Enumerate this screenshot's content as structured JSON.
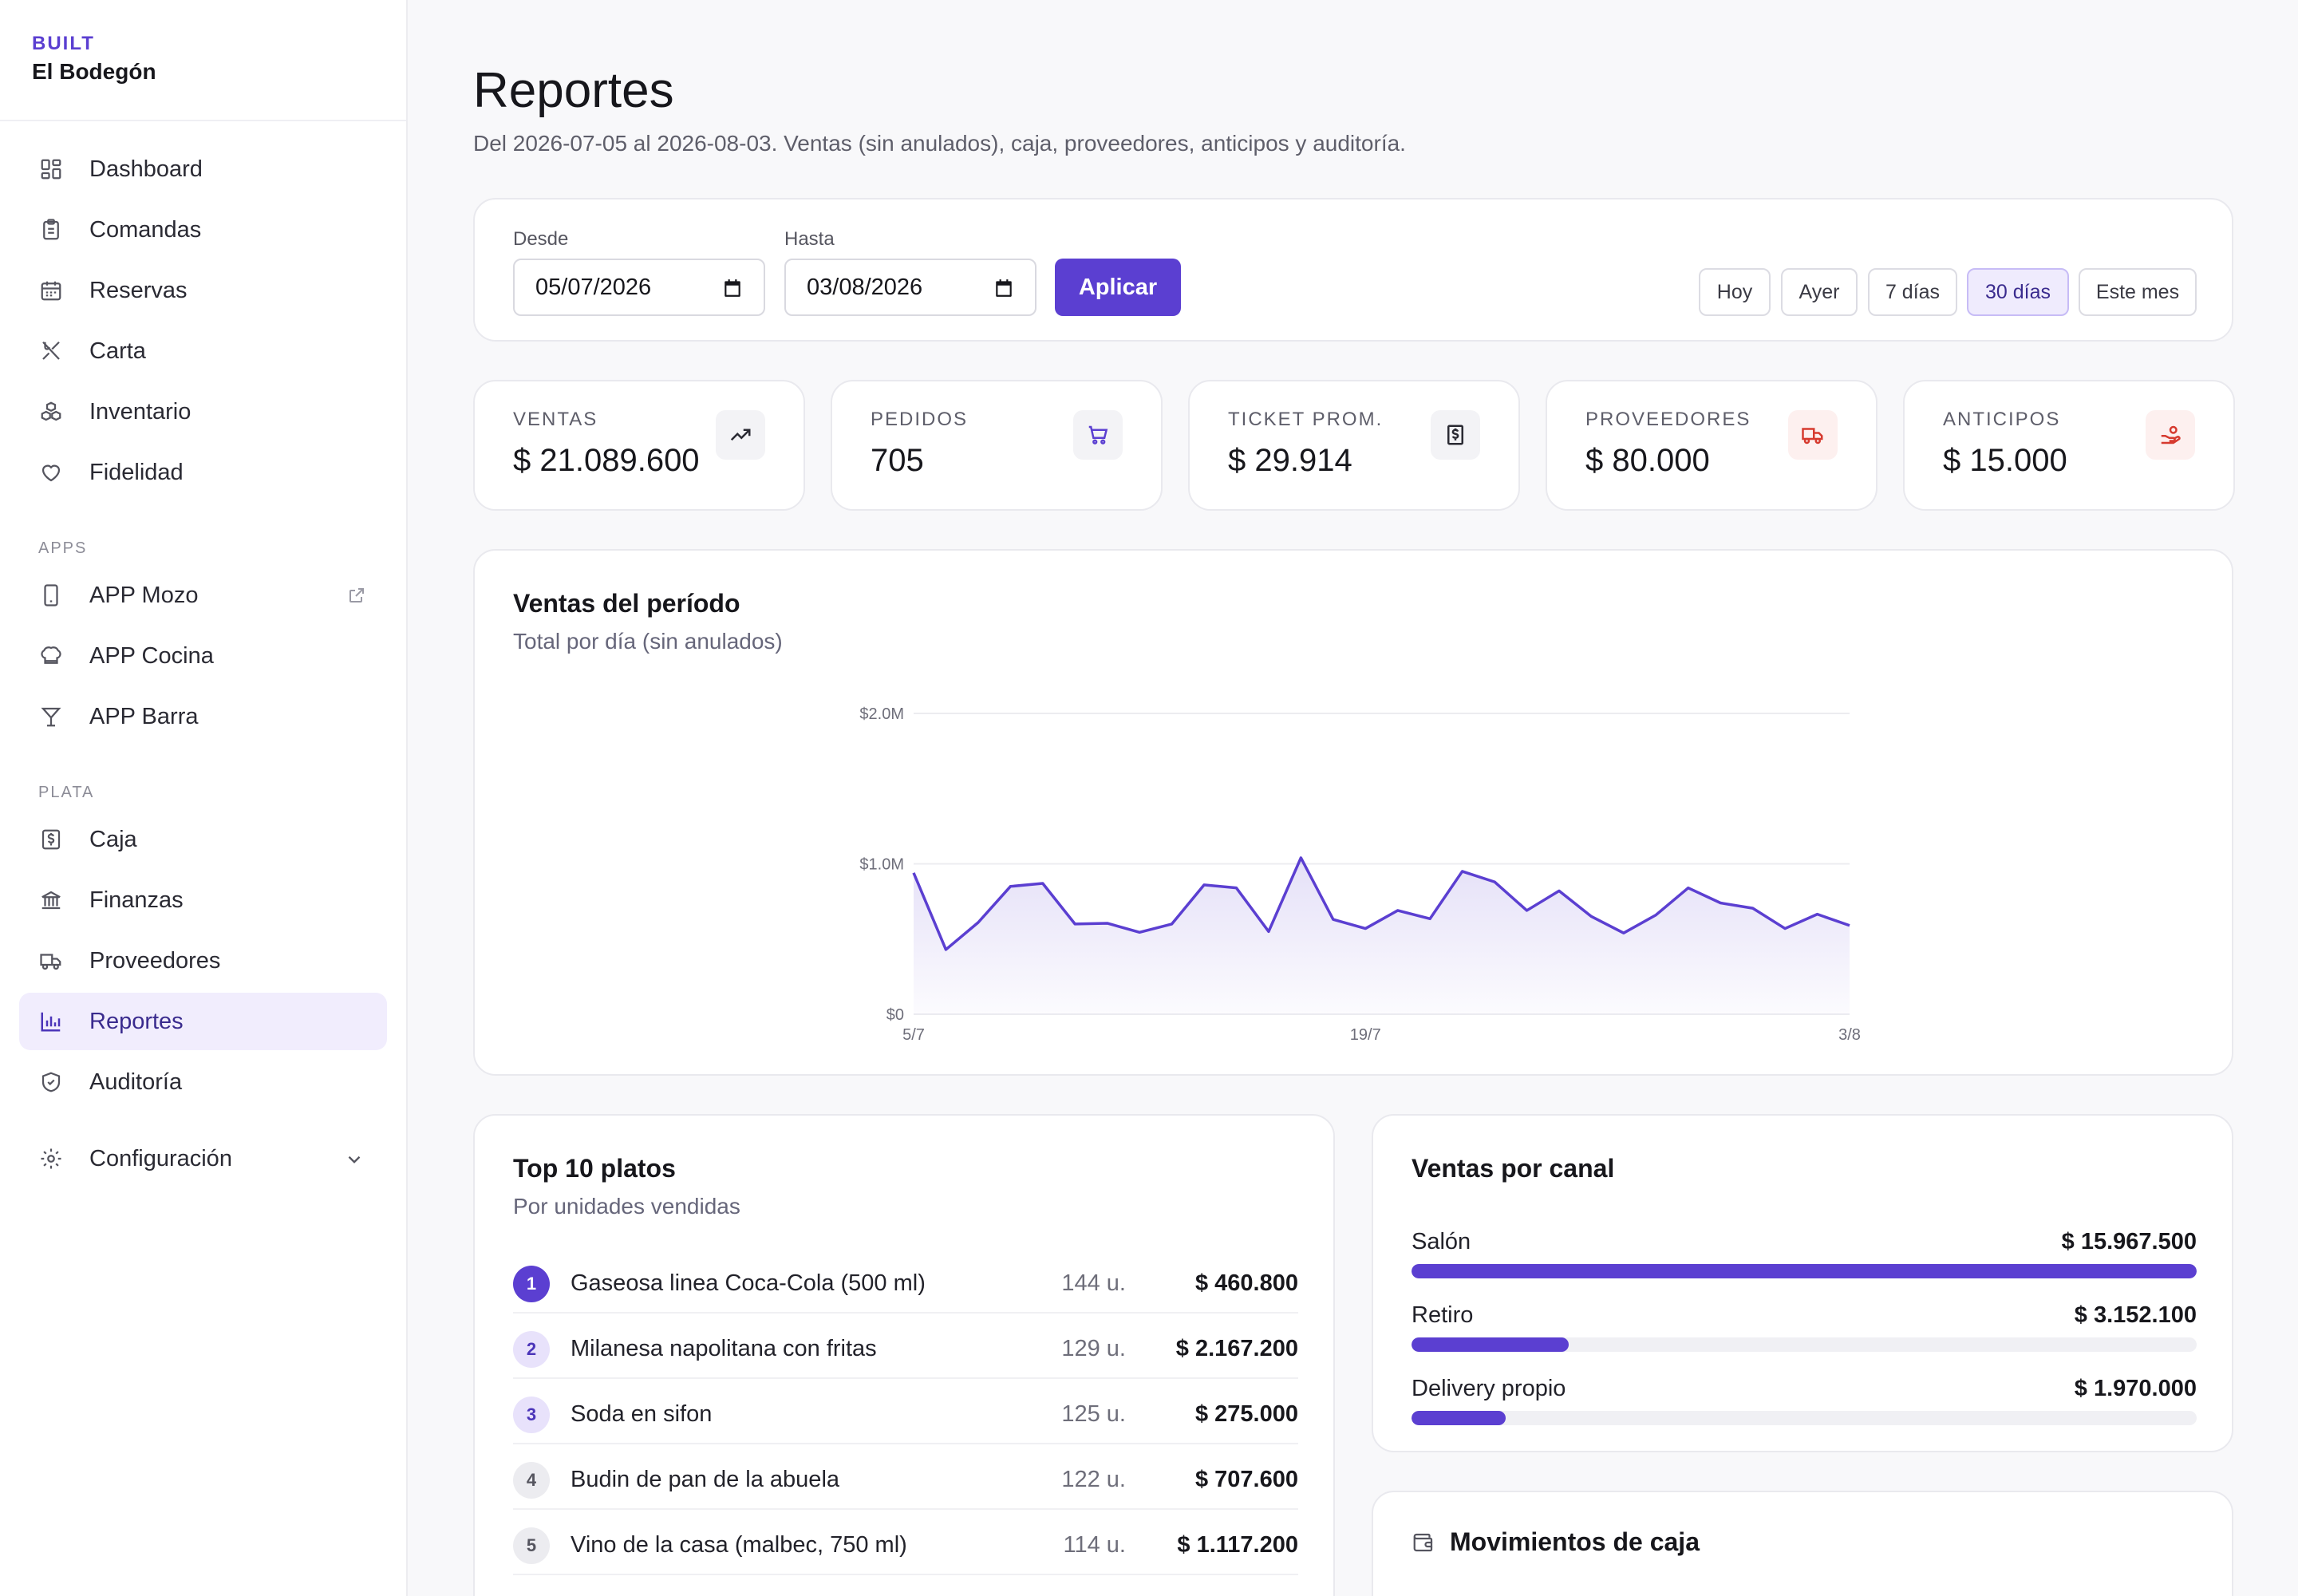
{
  "brand": {
    "sub": "BUILT",
    "name": "El Bodegón"
  },
  "nav": {
    "main": [
      {
        "label": "Dashboard",
        "icon": "dashboard-icon"
      },
      {
        "label": "Comandas",
        "icon": "clipboard-icon"
      },
      {
        "label": "Reservas",
        "icon": "calendar-icon"
      },
      {
        "label": "Carta",
        "icon": "utensils-icon"
      },
      {
        "label": "Inventario",
        "icon": "boxes-icon"
      },
      {
        "label": "Fidelidad",
        "icon": "heart-icon"
      }
    ],
    "apps_label": "APPS",
    "apps": [
      {
        "label": "APP Mozo",
        "icon": "phone-icon"
      },
      {
        "label": "APP Cocina",
        "icon": "chef-hat-icon"
      },
      {
        "label": "APP Barra",
        "icon": "cocktail-icon"
      }
    ],
    "plata_label": "PLATA",
    "plata": [
      {
        "label": "Caja",
        "icon": "cash-icon"
      },
      {
        "label": "Finanzas",
        "icon": "bank-icon"
      },
      {
        "label": "Proveedores",
        "icon": "truck-icon"
      },
      {
        "label": "Reportes",
        "icon": "bar-chart-icon"
      },
      {
        "label": "Auditoría",
        "icon": "shield-icon"
      }
    ],
    "config": {
      "label": "Configuración",
      "icon": "gear-icon"
    }
  },
  "page": {
    "title": "Reportes",
    "subtitle": "Del 2026-07-05 al 2026-08-03. Ventas (sin anulados), caja, proveedores, anticipos y auditoría."
  },
  "filter": {
    "desde_label": "Desde",
    "desde_value": "05/07/2026",
    "hasta_label": "Hasta",
    "hasta_value": "03/08/2026",
    "apply": "Aplicar",
    "chips": [
      "Hoy",
      "Ayer",
      "7 días",
      "30 días",
      "Este mes"
    ],
    "active_chip": "30 días"
  },
  "stats": [
    {
      "label": "VENTAS",
      "value": "$ 21.089.600",
      "icon": "trending-up-icon",
      "color": "#2a2a33"
    },
    {
      "label": "PEDIDOS",
      "value": "705",
      "icon": "cart-icon",
      "color": "#5b3fd1"
    },
    {
      "label": "TICKET PROM.",
      "value": "$ 29.914",
      "icon": "receipt-icon",
      "color": "#2a2a33"
    },
    {
      "label": "PROVEEDORES",
      "value": "$ 80.000",
      "icon": "truck-icon",
      "color": "#d63a2f"
    },
    {
      "label": "ANTICIPOS",
      "value": "$ 15.000",
      "icon": "hand-coins-icon",
      "color": "#d63a2f"
    }
  ],
  "chart": {
    "title": "Ventas del período",
    "subtitle": "Total por día (sin anulados)"
  },
  "chart_data": {
    "type": "area",
    "title": "Ventas del período",
    "subtitle": "Total por día (sin anulados)",
    "ylim": [
      0,
      2000000
    ],
    "y_ticks": [
      "$0",
      "$1.0M",
      "$2.0M"
    ],
    "x_ticks": [
      "5/7",
      "19/7",
      "3/8"
    ],
    "x": [
      "5/7",
      "6/7",
      "7/7",
      "8/7",
      "9/7",
      "10/7",
      "11/7",
      "12/7",
      "13/7",
      "14/7",
      "15/7",
      "16/7",
      "17/7",
      "18/7",
      "19/7",
      "20/7",
      "21/7",
      "22/7",
      "23/7",
      "24/7",
      "25/7",
      "26/7",
      "27/7",
      "28/7",
      "29/7",
      "30/7",
      "31/7",
      "1/8",
      "2/8",
      "3/8"
    ],
    "series": [
      {
        "values": [
          940000,
          430000,
          610000,
          850000,
          870000,
          600000,
          605000,
          545000,
          600000,
          860000,
          840000,
          550000,
          1040000,
          630000,
          570000,
          690000,
          635000,
          950000,
          880000,
          690000,
          820000,
          650000,
          540000,
          660000,
          840000,
          740000,
          705000,
          570000,
          665000,
          590000
        ],
        "color": "#5b3fd1"
      }
    ],
    "grid": true
  },
  "top_dishes": {
    "title": "Top 10 platos",
    "subtitle": "Por unidades vendidas",
    "items": [
      {
        "rank": "1",
        "name": "Gaseosa linea Coca-Cola (500 ml)",
        "units": "144 u.",
        "amount": "$ 460.800"
      },
      {
        "rank": "2",
        "name": "Milanesa napolitana con fritas",
        "units": "129 u.",
        "amount": "$ 2.167.200"
      },
      {
        "rank": "3",
        "name": "Soda en sifon",
        "units": "125 u.",
        "amount": "$ 275.000"
      },
      {
        "rank": "4",
        "name": "Budin de pan de la abuela",
        "units": "122 u.",
        "amount": "$ 707.600"
      },
      {
        "rank": "5",
        "name": "Vino de la casa (malbec, 750 ml)",
        "units": "114 u.",
        "amount": "$ 1.117.200"
      }
    ]
  },
  "canal": {
    "title": "Ventas por canal",
    "items": [
      {
        "name": "Salón",
        "value": "$ 15.967.500",
        "fraction": 1.0
      },
      {
        "name": "Retiro",
        "value": "$ 3.152.100",
        "fraction": 0.2
      },
      {
        "name": "Delivery propio",
        "value": "$ 1.970.000",
        "fraction": 0.12
      }
    ]
  },
  "movimientos": {
    "title": "Movimientos de caja",
    "icon": "wallet-icon"
  }
}
